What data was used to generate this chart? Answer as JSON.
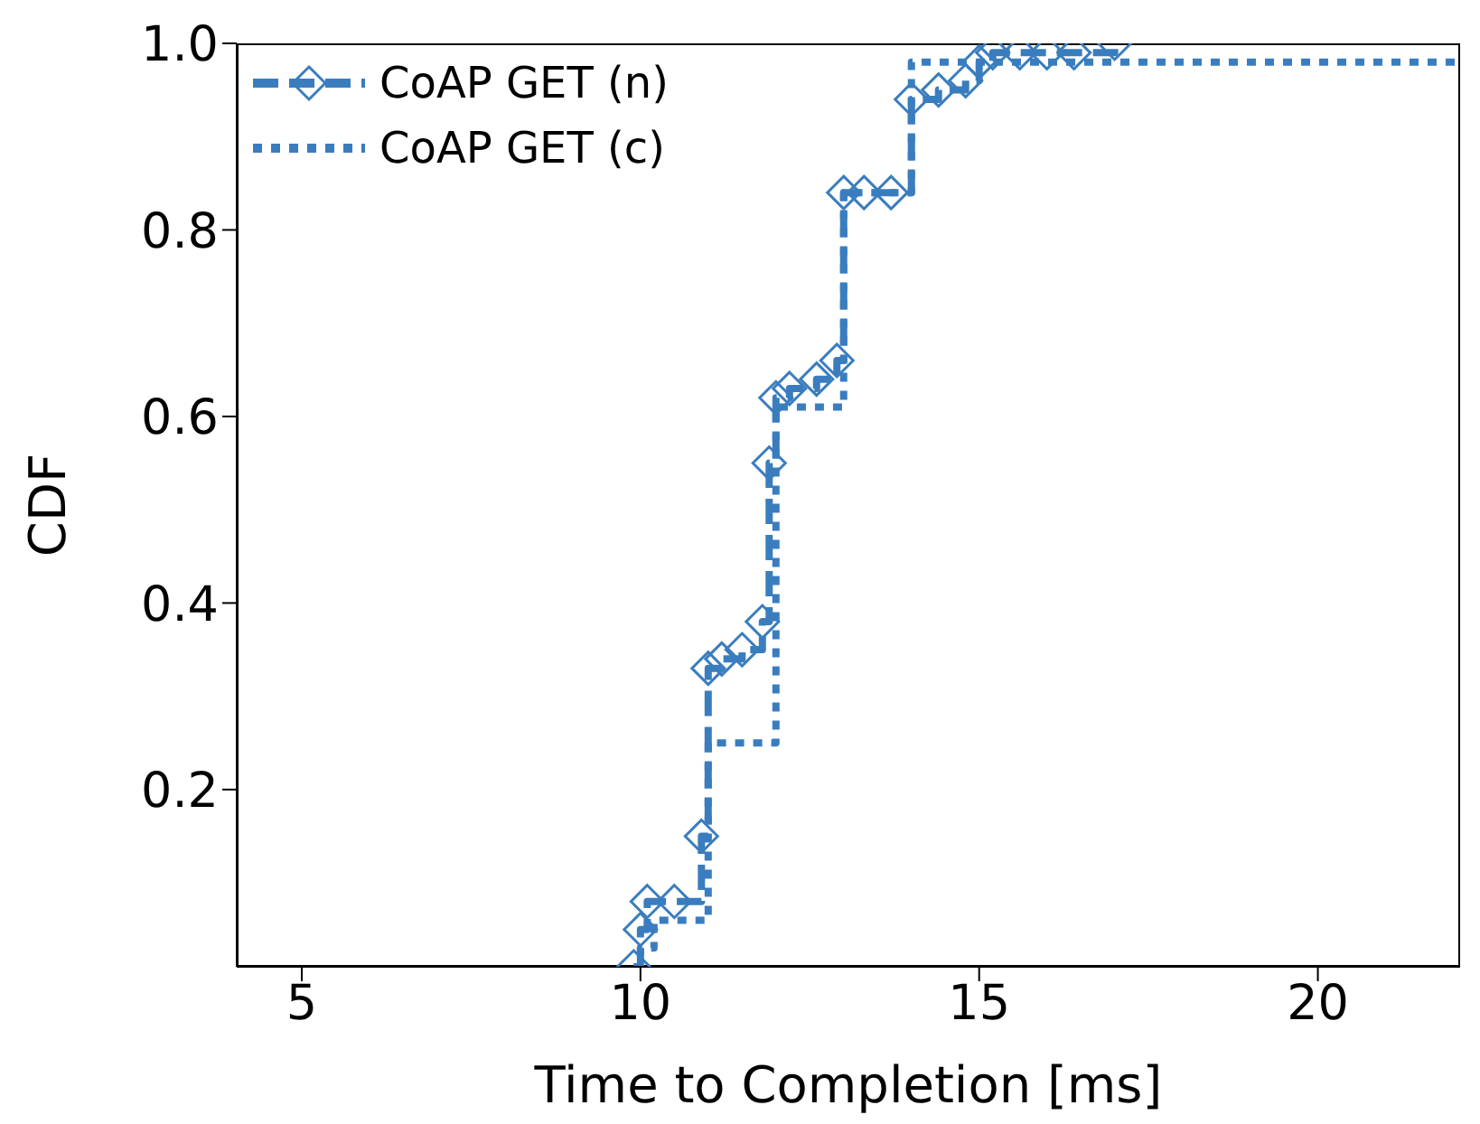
{
  "chart_data": {
    "type": "step",
    "xlabel": "Time to Completion [ms]",
    "ylabel": "CDF",
    "xlim": [
      4.04,
      22.1
    ],
    "xticks": [
      5,
      10,
      15,
      20
    ],
    "ylim": [
      0.01,
      1.0
    ],
    "yticks": [
      0.2,
      0.4,
      0.6,
      0.8,
      {
        "value": 1.0,
        "label": "1.0"
      }
    ],
    "grid": false,
    "legend": "top left",
    "series": [
      {
        "name": "CoAP GET (n)",
        "color": "#3a7dbf",
        "line_style": "dashed",
        "marker": "diamond",
        "x": [
          9.9,
          10.0,
          10.1,
          10.5,
          10.9,
          11.0,
          11.2,
          11.5,
          11.8,
          11.9,
          12.0,
          12.2,
          12.6,
          12.9,
          13.0,
          13.3,
          13.7,
          14.0,
          14.4,
          14.8,
          15.0,
          15.2,
          15.6,
          16.0,
          16.4,
          17.0
        ],
        "values": [
          0.01,
          0.05,
          0.08,
          0.08,
          0.15,
          0.33,
          0.34,
          0.35,
          0.38,
          0.55,
          0.62,
          0.63,
          0.64,
          0.66,
          0.84,
          0.84,
          0.84,
          0.94,
          0.95,
          0.96,
          0.98,
          0.99,
          0.99,
          0.99,
          0.99,
          1.0
        ]
      },
      {
        "name": "CoAP GET (c)",
        "color": "#3a7dbf",
        "line_style": "dotted",
        "marker": "none",
        "x": [
          9.9,
          10.0,
          10.2,
          11.0,
          12.0,
          13.0,
          14.0,
          22.1
        ],
        "values": [
          0.01,
          0.03,
          0.06,
          0.25,
          0.61,
          0.84,
          0.98,
          0.98
        ]
      }
    ]
  }
}
